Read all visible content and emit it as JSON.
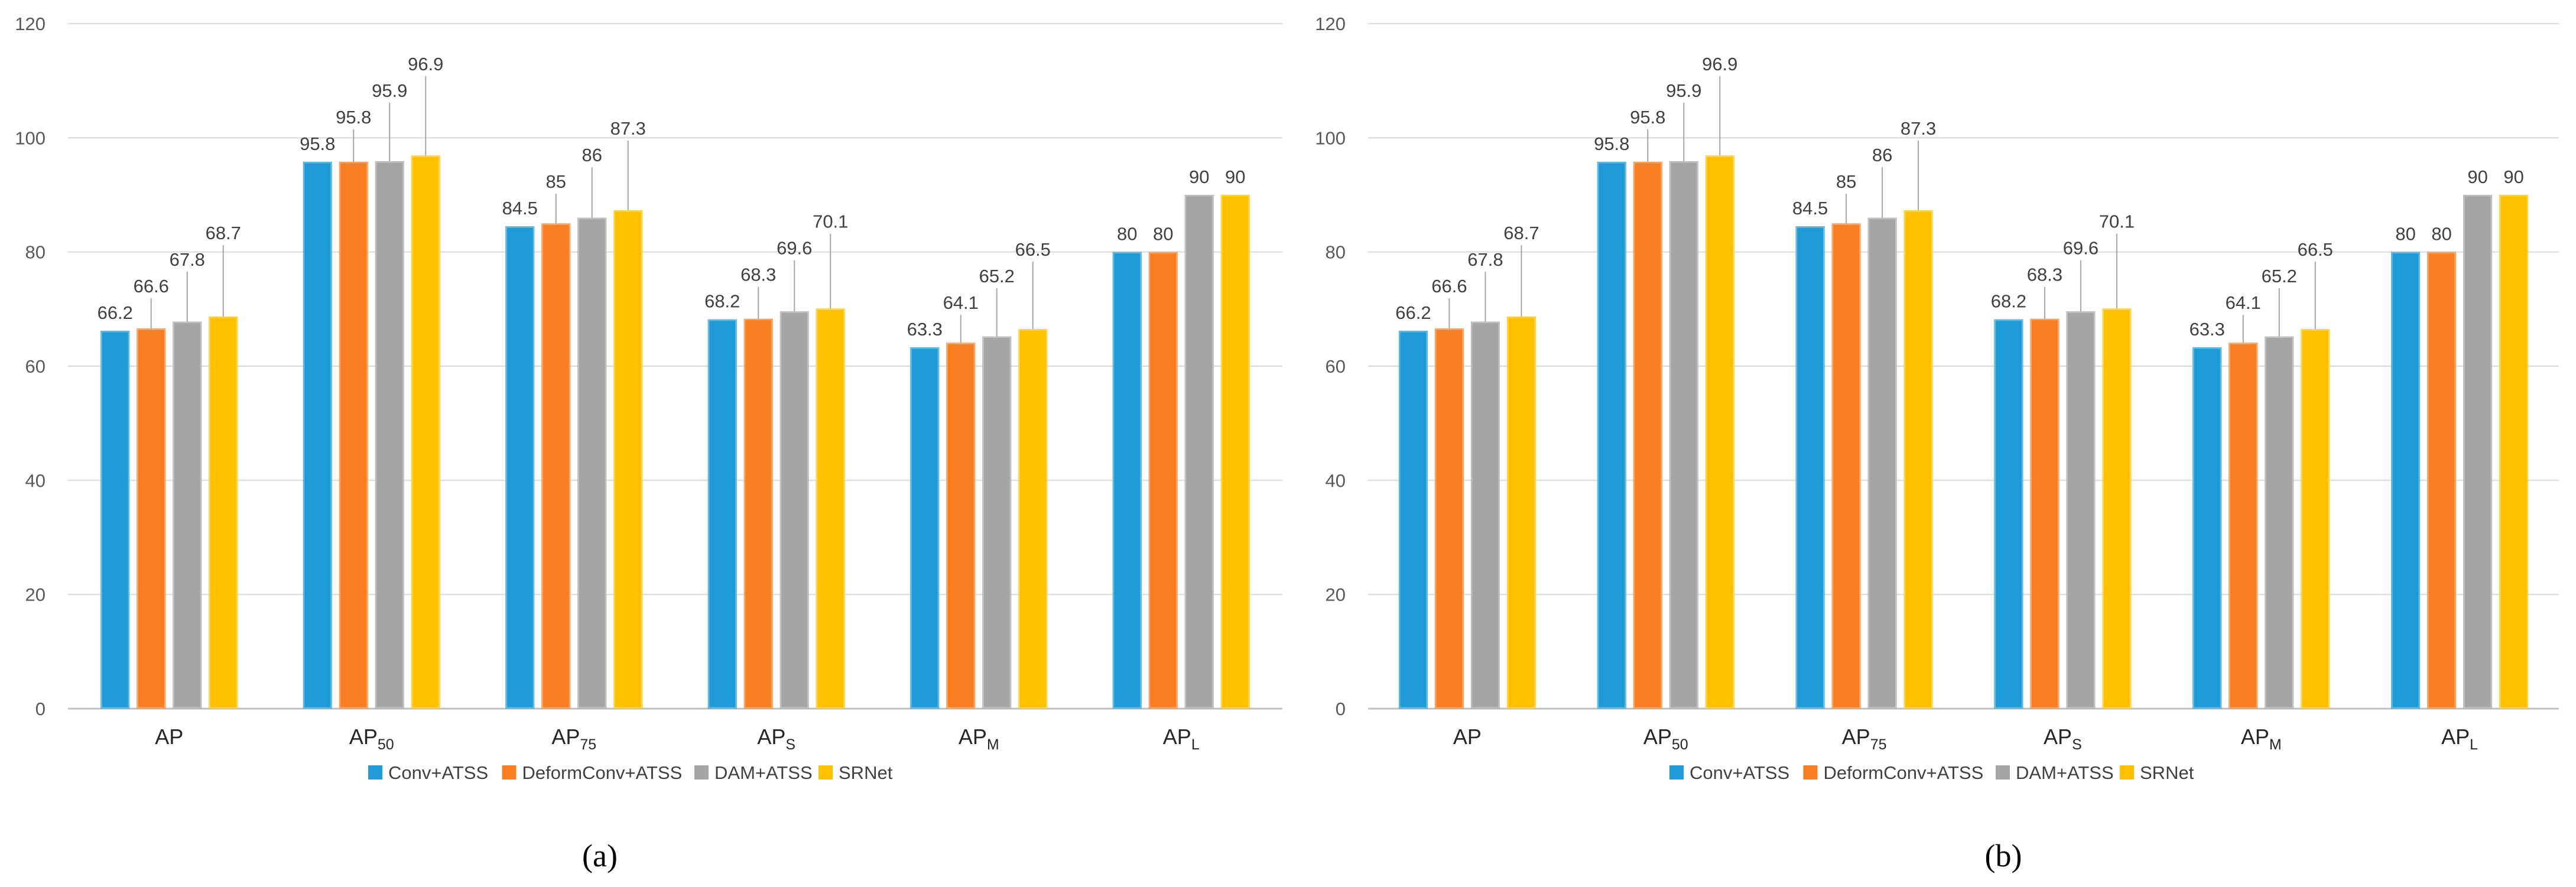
{
  "figure": {
    "panel_labels": [
      "(a)",
      "(b)"
    ]
  },
  "colors": {
    "Conv+ATSS": "#1e9bd7",
    "DeformConv+ATSS": "#f97e22",
    "DAM+ATSS": "#a5a5a5",
    "SRNet": "#ffc000",
    "grid": "#d9d9d9",
    "axis": "#bfbfbf",
    "leader": "#a6a6a6"
  },
  "chart_data": [
    {
      "type": "bar",
      "panel": "(a)",
      "categories": [
        {
          "base": "AP",
          "sub": ""
        },
        {
          "base": "AP",
          "sub": "50"
        },
        {
          "base": "AP",
          "sub": "75"
        },
        {
          "base": "AP",
          "sub": "S"
        },
        {
          "base": "AP",
          "sub": "M"
        },
        {
          "base": "AP",
          "sub": "L"
        }
      ],
      "series": [
        {
          "name": "Conv+ATSS",
          "values": [
            66.2,
            95.8,
            84.5,
            68.2,
            63.3,
            80
          ]
        },
        {
          "name": "DeformConv+ATSS",
          "values": [
            66.6,
            95.8,
            85,
            68.3,
            64.1,
            80
          ]
        },
        {
          "name": "DAM+ATSS",
          "values": [
            67.8,
            95.9,
            86,
            69.6,
            65.2,
            90
          ]
        },
        {
          "name": "SRNet",
          "values": [
            68.7,
            96.9,
            87.3,
            70.1,
            66.5,
            90
          ]
        }
      ],
      "data_labels": [
        [
          "66.2",
          "95.8",
          "84.5",
          "68.2",
          "63.3",
          "80"
        ],
        [
          "66.6",
          "95.8",
          "85",
          "68.3",
          "64.1",
          "80"
        ],
        [
          "67.8",
          "95.9",
          "86",
          "69.6",
          "65.2",
          "90"
        ],
        [
          "68.7",
          "96.9",
          "87.3",
          "70.1",
          "66.5",
          "90"
        ]
      ],
      "yticks": [
        "0",
        "20",
        "40",
        "60",
        "80",
        "100",
        "120"
      ],
      "ylim": [
        0,
        120
      ],
      "grid": true,
      "legend": "bottom",
      "title": "",
      "xlabel": "",
      "ylabel": ""
    },
    {
      "type": "bar",
      "panel": "(b)",
      "categories": [
        {
          "base": "AP",
          "sub": ""
        },
        {
          "base": "AP",
          "sub": "50"
        },
        {
          "base": "AP",
          "sub": "75"
        },
        {
          "base": "AP",
          "sub": "S"
        },
        {
          "base": "AP",
          "sub": "M"
        },
        {
          "base": "AP",
          "sub": "L"
        }
      ],
      "series": [
        {
          "name": "Conv+ATSS",
          "values": [
            66.2,
            95.8,
            84.5,
            68.2,
            63.3,
            80
          ]
        },
        {
          "name": "DeformConv+ATSS",
          "values": [
            66.6,
            95.8,
            85,
            68.3,
            64.1,
            80
          ]
        },
        {
          "name": "DAM+ATSS",
          "values": [
            67.8,
            95.9,
            86,
            69.6,
            65.2,
            90
          ]
        },
        {
          "name": "SRNet",
          "values": [
            68.7,
            96.9,
            87.3,
            70.1,
            66.5,
            90
          ]
        }
      ],
      "data_labels": [
        [
          "66.2",
          "95.8",
          "84.5",
          "68.2",
          "63.3",
          "80"
        ],
        [
          "66.6",
          "95.8",
          "85",
          "68.3",
          "64.1",
          "80"
        ],
        [
          "67.8",
          "95.9",
          "86",
          "69.6",
          "65.2",
          "90"
        ],
        [
          "68.7",
          "96.9",
          "87.3",
          "70.1",
          "66.5",
          "90"
        ]
      ],
      "yticks": [
        "0",
        "20",
        "40",
        "60",
        "80",
        "100",
        "120"
      ],
      "ylim": [
        0,
        120
      ],
      "grid": true,
      "legend": "bottom",
      "title": "",
      "xlabel": "",
      "ylabel": ""
    }
  ]
}
